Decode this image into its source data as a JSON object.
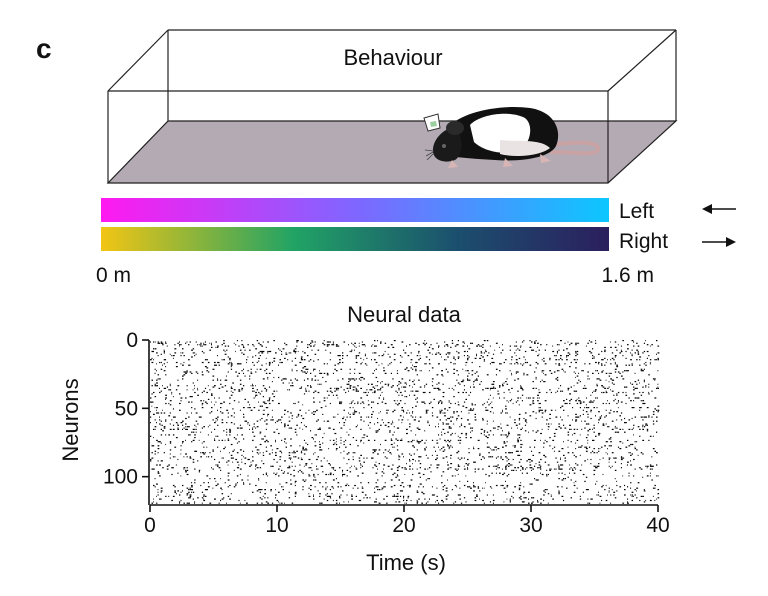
{
  "panel_label": "c",
  "behaviour": {
    "title": "Behaviour",
    "track_start_label": "0 m",
    "track_end_label": "1.6 m",
    "directions": [
      {
        "label": "Left",
        "arrow": "left-arrow-icon",
        "gradient": [
          "#ff19f0",
          "#7f66ff",
          "#0cc7ff"
        ]
      },
      {
        "label": "Right",
        "arrow": "right-arrow-icon",
        "gradient": [
          "#f2c514",
          "#21a365",
          "#1b4f6e",
          "#2b1f5e"
        ]
      }
    ],
    "floor_color": "#b3aab3"
  },
  "neural": {
    "title": "Neural data"
  },
  "chart_data": {
    "type": "raster",
    "title": "Neural data",
    "xlabel": "Time (s)",
    "ylabel": "Neurons",
    "xlim": [
      0,
      40
    ],
    "ylim": [
      0,
      120
    ],
    "y_inverted": true,
    "xticks": [
      0,
      10,
      20,
      30,
      40
    ],
    "yticks": [
      0,
      50,
      100
    ],
    "n_neurons": 120,
    "spike_color": "#000000"
  }
}
